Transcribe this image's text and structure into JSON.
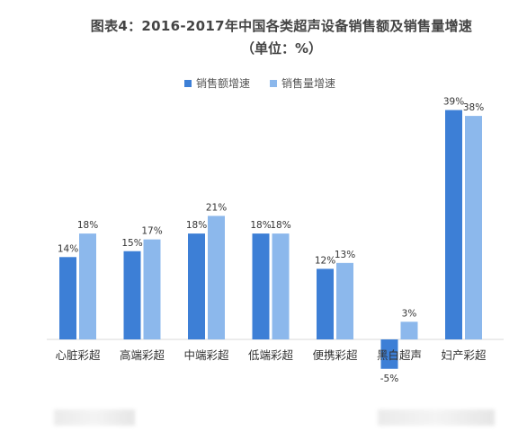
{
  "chart_data": {
    "type": "bar",
    "title": "图表4：2016-2017年中国各类超声设备销售额及销售量增速",
    "subtitle": "（单位：%）",
    "categories": [
      "心脏彩超",
      "高端彩超",
      "中端彩超",
      "低端彩超",
      "便携彩超",
      "黑白超声",
      "妇产彩超"
    ],
    "series": [
      {
        "name": "销售额增速",
        "values": [
          14,
          15,
          18,
          18,
          12,
          -5,
          39
        ],
        "labels": [
          "14%",
          "15%",
          "18%",
          "18%",
          "12%",
          "-5%",
          "39%"
        ],
        "color": "#3d7fd6"
      },
      {
        "name": "销售量增速",
        "values": [
          18,
          17,
          21,
          18,
          13,
          3,
          38
        ],
        "labels": [
          "18%",
          "17%",
          "21%",
          "18%",
          "13%",
          "3%",
          "38%"
        ],
        "color": "#8cb8ec"
      }
    ],
    "ylim": [
      -5,
      39
    ],
    "grid": false,
    "legend": "top"
  }
}
